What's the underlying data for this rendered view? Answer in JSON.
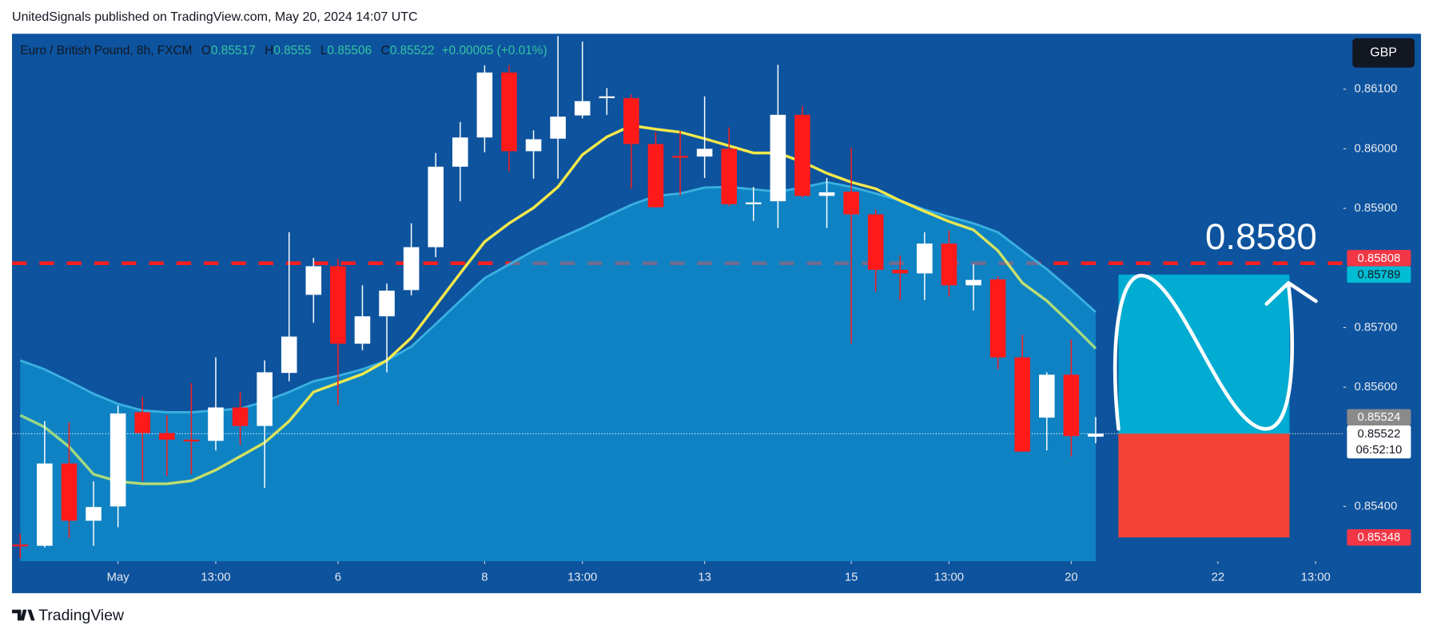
{
  "header": {
    "text": "UnitedSignals published on TradingView.com, May 20, 2024 14:07 UTC"
  },
  "footer": {
    "logo": "TradingView"
  },
  "chart_data": {
    "type": "candlestick",
    "title": "Euro / British Pound, 8h, FXCM",
    "ohlc_labels": [
      "O",
      "H",
      "L",
      "C"
    ],
    "change_label": "+0.00005 (+0.01%)",
    "currency": "GBP",
    "x": [
      0,
      1,
      2,
      3,
      4,
      5,
      6,
      7,
      8,
      9,
      10,
      11,
      12,
      13,
      14,
      15,
      16,
      17,
      18,
      19,
      20,
      21,
      22,
      23,
      24,
      25,
      26,
      27,
      28,
      29,
      30,
      31,
      32,
      33,
      34,
      35,
      36,
      37,
      38,
      39,
      40,
      41,
      42,
      43,
      44
    ],
    "open": [
      0.85336,
      0.85334,
      0.85472,
      0.85376,
      0.854,
      0.85558,
      0.85523,
      0.85512,
      0.8551,
      0.85566,
      0.85535,
      0.85624,
      0.85755,
      0.85803,
      0.85673,
      0.85719,
      0.85763,
      0.85835,
      0.8597,
      0.86019,
      0.86128,
      0.85996,
      0.86017,
      0.86056,
      0.86085,
      0.86085,
      0.86008,
      0.85988,
      0.85987,
      0.86,
      0.85907,
      0.85912,
      0.86057,
      0.85921,
      0.85928,
      0.8589,
      0.85797,
      0.85791,
      0.85841,
      0.85771,
      0.85781,
      0.8565,
      0.85549,
      0.85621,
      0.85517
    ],
    "high": [
      0.85354,
      0.85543,
      0.85541,
      0.85442,
      0.85569,
      0.85584,
      0.85553,
      0.85607,
      0.8565,
      0.85592,
      0.85645,
      0.8586,
      0.85817,
      0.85815,
      0.85771,
      0.85774,
      0.85875,
      0.85993,
      0.86045,
      0.8614,
      0.8614,
      0.86031,
      0.86189,
      0.8618,
      0.86102,
      0.86091,
      0.86028,
      0.8603,
      0.86088,
      0.86036,
      0.85936,
      0.86141,
      0.86072,
      0.85951,
      0.86002,
      0.85898,
      0.85821,
      0.8586,
      0.85863,
      0.85806,
      0.85786,
      0.85688,
      0.85625,
      0.8568,
      0.8555
    ],
    "low": [
      0.85313,
      0.85331,
      0.85347,
      0.85334,
      0.85365,
      0.85442,
      0.85451,
      0.85454,
      0.85494,
      0.85503,
      0.85431,
      0.8561,
      0.85708,
      0.8557,
      0.85662,
      0.85625,
      0.85754,
      0.85818,
      0.85912,
      0.85994,
      0.85962,
      0.8595,
      0.8595,
      0.86051,
      0.86057,
      0.85933,
      0.85901,
      0.85922,
      0.85951,
      0.85904,
      0.85879,
      0.85867,
      0.85918,
      0.85867,
      0.85673,
      0.8576,
      0.85746,
      0.85746,
      0.85752,
      0.85729,
      0.8563,
      0.85492,
      0.85494,
      0.85484,
      0.85506
    ],
    "close": [
      0.85333,
      0.85472,
      0.85376,
      0.85399,
      0.85556,
      0.85523,
      0.85512,
      0.85509,
      0.85566,
      0.85535,
      0.85625,
      0.85685,
      0.85803,
      0.85673,
      0.85719,
      0.85762,
      0.85835,
      0.8597,
      0.86019,
      0.86128,
      0.85996,
      0.86016,
      0.86054,
      0.8608,
      0.86088,
      0.86008,
      0.85902,
      0.85985,
      0.86,
      0.85907,
      0.8591,
      0.86057,
      0.85921,
      0.85927,
      0.8589,
      0.85797,
      0.85791,
      0.85841,
      0.85771,
      0.8578,
      0.8565,
      0.85492,
      0.85621,
      0.85518,
      0.85522
    ],
    "up_color": "#ffffff",
    "down_color": "#ff1a1a",
    "lines": [
      {
        "type": "area",
        "color": "#10a2dc",
        "stroke": "#3ab0e0",
        "values": [
          0.85645,
          0.8563,
          0.8561,
          0.85589,
          0.85572,
          0.85561,
          0.85558,
          0.85558,
          0.85561,
          0.85564,
          0.85576,
          0.85592,
          0.8561,
          0.85619,
          0.8563,
          0.85645,
          0.85668,
          0.85706,
          0.85745,
          0.85783,
          0.85806,
          0.85829,
          0.85849,
          0.85867,
          0.85887,
          0.85906,
          0.85921,
          0.85925,
          0.85935,
          0.85936,
          0.85932,
          0.85928,
          0.85935,
          0.85944,
          0.85936,
          0.85925,
          0.85913,
          0.85898,
          0.85886,
          0.85875,
          0.8586,
          0.85829,
          0.85798,
          0.85763,
          0.85726
        ]
      },
      {
        "type": "line",
        "colors": [
          "#8fd58c",
          "#f5e94a",
          "#f5e94a",
          "#9ad88a"
        ],
        "values": [
          0.85553,
          0.85533,
          0.855,
          0.85454,
          0.85442,
          0.85438,
          0.85438,
          0.85443,
          0.85461,
          0.85484,
          0.85507,
          0.85543,
          0.85592,
          0.85607,
          0.85622,
          0.85645,
          0.85683,
          0.85737,
          0.85791,
          0.85844,
          0.85875,
          0.85901,
          0.85936,
          0.8599,
          0.8602,
          0.86039,
          0.86033,
          0.86028,
          0.86017,
          0.86005,
          0.85993,
          0.85993,
          0.85978,
          0.85959,
          0.85944,
          0.85933,
          0.85913,
          0.85895,
          0.85878,
          0.85864,
          0.85829,
          0.85775,
          0.85745,
          0.85706,
          0.85665
        ]
      }
    ],
    "xlim": [
      -0.336,
      54.131
    ],
    "xticks": [
      {
        "value": 4,
        "label": "May"
      },
      {
        "value": 8,
        "label": "13:00"
      },
      {
        "value": 13,
        "label": "6"
      },
      {
        "value": 19,
        "label": "8"
      },
      {
        "value": 23,
        "label": "13:00"
      },
      {
        "value": 28,
        "label": "13"
      },
      {
        "value": 34,
        "label": "15"
      },
      {
        "value": 38,
        "label": "13:00"
      },
      {
        "value": 43,
        "label": "20"
      },
      {
        "value": 49,
        "label": "22"
      },
      {
        "value": 53,
        "label": "13:00"
      }
    ],
    "ylim": [
      0.85308,
      0.86193
    ],
    "yticks": [
      {
        "value": 0.861,
        "label": "0.86100"
      },
      {
        "value": 0.86,
        "label": "0.86000"
      },
      {
        "value": 0.859,
        "label": "0.85900"
      },
      {
        "value": 0.857,
        "label": "0.85700"
      },
      {
        "value": 0.856,
        "label": "0.85600"
      },
      {
        "value": 0.854,
        "label": "0.85400"
      }
    ],
    "level": {
      "value": 0.85808,
      "color": "#ff1e1e"
    },
    "position": {
      "x": [
        44.93,
        51.93
      ],
      "entry": 0.85522,
      "target": 0.85789,
      "stop": 0.85348,
      "target_color": "#00acd1",
      "stop_color": "#f44336"
    },
    "annotation": "0.8580",
    "price_labels": [
      {
        "value": 0.85808,
        "color": "#f23645",
        "text_color": "#ffffff"
      },
      {
        "value": 0.85789,
        "color": "#00bcd4",
        "text_color": "#131722"
      },
      {
        "value": 0.85524,
        "color": "#8a8a8a",
        "text_color": "#ffffff"
      },
      {
        "value": 0.85522,
        "color": "#ffffff",
        "text_color": "#131722",
        "countdown": "06:52:10"
      },
      {
        "value": 0.85348,
        "color": "#f23645",
        "text_color": "#ffffff"
      }
    ]
  }
}
